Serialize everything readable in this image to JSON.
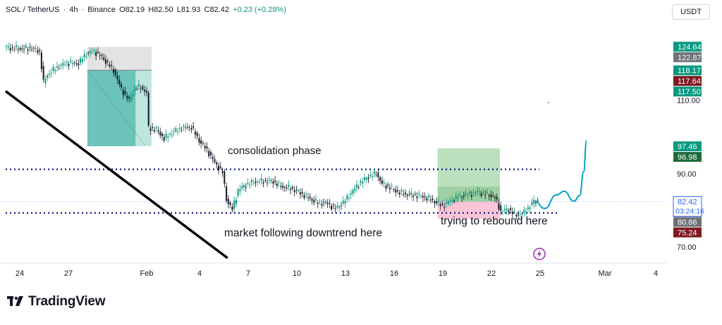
{
  "header": {
    "symbol": "SOL / TetherUS",
    "interval": "4h",
    "exchange": "Binance",
    "open": "O82.19",
    "high": "H82.50",
    "low": "L81.93",
    "close": "C82.42",
    "change": "+0.23 (+0.28%)"
  },
  "currency_button": "USDT",
  "brand": "TradingView",
  "colors": {
    "up": "#089981",
    "down": "#131722",
    "target_zone": "#26a69a",
    "target_zone_light": "#bfe6de",
    "stop_zone": "#e0e0e0",
    "long_profit": "#a5d6a7",
    "long_loss": "#f8bbd0",
    "projection": "#00a3c4",
    "label_green": "#089981",
    "label_red": "#801922",
    "label_gray": "#6e7179",
    "label_darkgreen": "#1e6b3a",
    "label_blue": "#2962ff",
    "lightning": "#9c27b0"
  },
  "chart_data": {
    "type": "candlestick",
    "title": "",
    "x_ticks": [
      "24",
      "27",
      "Feb",
      "4",
      "7",
      "10",
      "13",
      "16",
      "19",
      "22",
      "25",
      "Mar",
      "4"
    ],
    "y_ticks": [
      110.0,
      90.0,
      70.0
    ],
    "y_tick_labels": [
      "110.00",
      "90.00",
      "70.00"
    ],
    "ylim": [
      66,
      132
    ],
    "price_labels": [
      {
        "value": 124.64,
        "text": "124.64",
        "color": "green"
      },
      {
        "value": 122.87,
        "text": "122.87",
        "color": "gray"
      },
      {
        "value": 118.17,
        "text": "118.17",
        "color": "green"
      },
      {
        "value": 117.64,
        "text": "117.64",
        "color": "red"
      },
      {
        "value": 117.5,
        "text": "117.50",
        "color": "green"
      },
      {
        "value": 97.46,
        "text": "97.46",
        "color": "green"
      },
      {
        "value": 96.98,
        "text": "96.98",
        "color": "darkgreen"
      },
      {
        "value": 82.42,
        "text": "82.42",
        "color": "blue"
      },
      {
        "value": 80.86,
        "text": "80.86",
        "color": "gray"
      },
      {
        "value": 75.24,
        "text": "75.24",
        "color": "red"
      }
    ],
    "countdown": "03:24:16",
    "annotations": [
      {
        "text": "consolidation phase"
      },
      {
        "text": "market following downtrend here"
      },
      {
        "text": "trying to rebound here"
      }
    ],
    "levels": {
      "resistance": 91.2,
      "support": 79.3,
      "last": 82.42
    },
    "price_path": [
      [
        0,
        124.5
      ],
      [
        4,
        124.3
      ],
      [
        9,
        124.1
      ],
      [
        14,
        124.2
      ],
      [
        18,
        123.3
      ],
      [
        20,
        114.9
      ],
      [
        22,
        117.0
      ],
      [
        27,
        119.1
      ],
      [
        32,
        120.2
      ],
      [
        38,
        120.1
      ],
      [
        42,
        122.8
      ],
      [
        46,
        123.4
      ],
      [
        50,
        121.8
      ],
      [
        56,
        118.2
      ],
      [
        60,
        113.0
      ],
      [
        64,
        110.0
      ],
      [
        67,
        113.4
      ],
      [
        70,
        113.6
      ],
      [
        73,
        112.0
      ],
      [
        74,
        102.5
      ],
      [
        78,
        102.0
      ],
      [
        82,
        99.6
      ],
      [
        86,
        101.2
      ],
      [
        91,
        102.5
      ],
      [
        96,
        102.7
      ],
      [
        100,
        99.0
      ],
      [
        104,
        96.5
      ],
      [
        108,
        93.0
      ],
      [
        112,
        90.4
      ],
      [
        114,
        83.0
      ],
      [
        117,
        80.2
      ],
      [
        120,
        85.5
      ],
      [
        124,
        87.0
      ],
      [
        128,
        87.7
      ],
      [
        133,
        88.0
      ],
      [
        138,
        87.9
      ],
      [
        142,
        86.5
      ],
      [
        147,
        86.0
      ],
      [
        151,
        85.0
      ],
      [
        156,
        83.5
      ],
      [
        161,
        82.0
      ],
      [
        165,
        82.1
      ],
      [
        170,
        80.5
      ],
      [
        174,
        82.1
      ],
      [
        178,
        84.7
      ],
      [
        182,
        87.2
      ],
      [
        186,
        88.9
      ],
      [
        191,
        90.1
      ],
      [
        194,
        87.2
      ],
      [
        198,
        86.2
      ],
      [
        203,
        84.8
      ],
      [
        208,
        84.2
      ],
      [
        213,
        84.0
      ],
      [
        218,
        83.2
      ],
      [
        222,
        82.1
      ],
      [
        225,
        81.2
      ],
      [
        229,
        82.5
      ],
      [
        233,
        83.7
      ],
      [
        238,
        84.3
      ],
      [
        243,
        85.0
      ],
      [
        246,
        84.6
      ],
      [
        249,
        84.2
      ],
      [
        252,
        83.5
      ],
      [
        255,
        79.8
      ],
      [
        259,
        80.3
      ],
      [
        263,
        78.6
      ],
      [
        267,
        79.4
      ],
      [
        270,
        81.3
      ],
      [
        272,
        82.4
      ],
      [
        274,
        82.42
      ]
    ],
    "projection_path": [
      [
        272,
        82.4
      ],
      [
        277,
        80.5
      ],
      [
        283,
        84.2
      ],
      [
        287,
        85.2
      ],
      [
        292,
        82.5
      ],
      [
        295,
        84.0
      ],
      [
        297,
        90.5
      ],
      [
        298.5,
        99.0
      ]
    ],
    "trendline": [
      [
        0,
        112.5
      ],
      [
        114,
        67.0
      ]
    ],
    "short_position": {
      "x_start": 42,
      "x_end": 75,
      "entry": 118.2,
      "stop": 124.6,
      "target": 97.5
    },
    "long_position": {
      "x_start": 222,
      "x_end": 254,
      "entry": 82.4,
      "target": 96.9,
      "stop": 77.7
    }
  }
}
